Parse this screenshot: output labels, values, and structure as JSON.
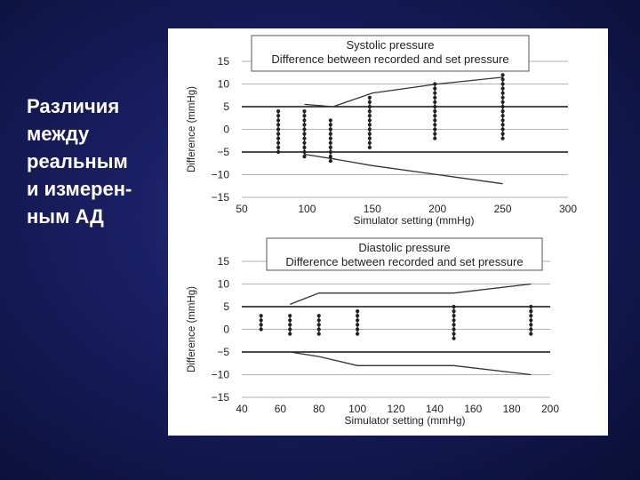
{
  "slide": {
    "title_lines": [
      "Различия",
      "между",
      "реальным",
      "и измерен-",
      "ным АД"
    ]
  },
  "colors": {
    "background": "#1a2060",
    "title_text": "#ffffff",
    "panel": "#ffffff",
    "data": "#222222"
  },
  "chart_data": [
    {
      "type": "scatter",
      "title": "Systolic pressure",
      "subtitle": "Difference between recorded and set pressure",
      "xlabel": "Simulator setting (mmHg)",
      "ylabel": "Difference (mmHg)",
      "xlim": [
        50,
        300
      ],
      "ylim": [
        -15,
        15
      ],
      "xticks": [
        "50",
        "100",
        "150",
        "200",
        "250",
        "300"
      ],
      "yticks": [
        "15",
        "10",
        "5",
        "0",
        "−5",
        "−10",
        "−15"
      ],
      "reference_lines_y": [
        5,
        -5
      ],
      "grid": "horizontal",
      "points": [
        {
          "x": 78,
          "ymin": -5,
          "ymax": 4
        },
        {
          "x": 98,
          "ymin": -6,
          "ymax": 4
        },
        {
          "x": 118,
          "ymin": -7,
          "ymax": 2
        },
        {
          "x": 148,
          "ymin": -4,
          "ymax": 7
        },
        {
          "x": 198,
          "ymin": -2,
          "ymax": 10
        },
        {
          "x": 250,
          "ymin": -2,
          "ymax": 12
        }
      ],
      "upper_tolerance": [
        [
          98,
          5.5
        ],
        [
          120,
          5
        ],
        [
          150,
          8
        ],
        [
          200,
          10
        ],
        [
          250,
          11.5
        ]
      ],
      "lower_tolerance": [
        [
          98,
          -5.5
        ],
        [
          120,
          -6.5
        ],
        [
          150,
          -8
        ],
        [
          200,
          -10
        ],
        [
          250,
          -12
        ]
      ]
    },
    {
      "type": "scatter",
      "title": "Diastolic pressure",
      "subtitle": "Difference between recorded and set pressure",
      "xlabel": "Simulator setting (mmHg)",
      "ylabel": "Difference (mmHg)",
      "xlim": [
        40,
        200
      ],
      "ylim": [
        -15,
        15
      ],
      "xticks": [
        "40",
        "60",
        "80",
        "100",
        "120",
        "140",
        "160",
        "180",
        "200"
      ],
      "yticks": [
        "15",
        "10",
        "5",
        "0",
        "−5",
        "−10",
        "−15"
      ],
      "reference_lines_y": [
        5,
        -5
      ],
      "grid": "horizontal",
      "points": [
        {
          "x": 50,
          "ymin": 0,
          "ymax": 3
        },
        {
          "x": 65,
          "ymin": -1,
          "ymax": 3
        },
        {
          "x": 80,
          "ymin": -1,
          "ymax": 3
        },
        {
          "x": 100,
          "ymin": -1,
          "ymax": 4
        },
        {
          "x": 150,
          "ymin": -2,
          "ymax": 5
        },
        {
          "x": 190,
          "ymin": -1,
          "ymax": 5
        }
      ],
      "upper_tolerance": [
        [
          65,
          5.5
        ],
        [
          80,
          8
        ],
        [
          150,
          8
        ],
        [
          190,
          10
        ]
      ],
      "lower_tolerance": [
        [
          65,
          -5
        ],
        [
          80,
          -6
        ],
        [
          100,
          -8
        ],
        [
          150,
          -8
        ],
        [
          190,
          -10
        ]
      ]
    }
  ]
}
